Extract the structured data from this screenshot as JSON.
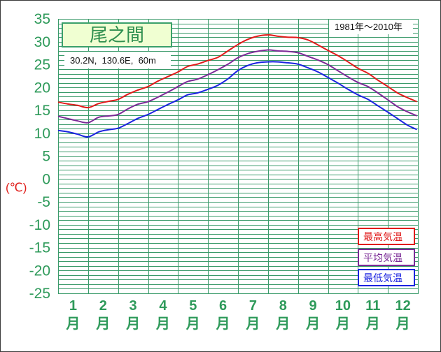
{
  "title": "尾之間",
  "location": "30.2N,  130.6E,  60m",
  "period": "1981年〜2010年",
  "colors": {
    "grid": "#3a9a6a",
    "axis_text": "#2e9a5a",
    "unit_text": "#e0201c",
    "title_bg": "#f0ffd2",
    "title_border": "#3aa06a",
    "frame": "#3a3a3a"
  },
  "chart_data": {
    "type": "line",
    "title": "尾之間",
    "ylabel": "(℃)",
    "xlabel": "",
    "ylim": [
      -25,
      35
    ],
    "y_ticks": [
      35,
      30,
      25,
      20,
      15,
      10,
      5,
      0,
      -5,
      -10,
      -15,
      -20,
      -25
    ],
    "x_tick_labels": [
      "1",
      "2",
      "3",
      "4",
      "5",
      "6",
      "7",
      "8",
      "9",
      "10",
      "11",
      "12"
    ],
    "x_tick_unit": "月",
    "grid": true,
    "legend_position": "bottom-right",
    "x": [
      "1/1",
      "1/11",
      "1/21",
      "2/1",
      "2/11",
      "2/21",
      "3/1",
      "3/11",
      "3/21",
      "4/1",
      "4/11",
      "4/21",
      "5/1",
      "5/11",
      "5/21",
      "6/1",
      "6/11",
      "6/21",
      "7/1",
      "7/11",
      "7/21",
      "8/1",
      "8/11",
      "8/21",
      "9/1",
      "9/11",
      "9/21",
      "10/1",
      "10/11",
      "10/21",
      "11/1",
      "11/11",
      "11/21",
      "12/1",
      "12/11",
      "12/21",
      "12/31"
    ],
    "series": [
      {
        "name": "最高気温",
        "color": "#e01a1a",
        "values": [
          16.8,
          16.4,
          16.1,
          15.6,
          16.5,
          17.0,
          17.4,
          18.5,
          19.4,
          20.2,
          21.4,
          22.4,
          23.4,
          24.6,
          25.1,
          25.9,
          26.6,
          28.0,
          29.4,
          30.5,
          31.2,
          31.5,
          31.2,
          31.0,
          30.9,
          30.4,
          29.3,
          28.1,
          27.0,
          25.7,
          24.2,
          23.1,
          21.6,
          20.2,
          18.8,
          17.8,
          16.9
        ]
      },
      {
        "name": "平均気温",
        "color": "#7a2a96",
        "values": [
          13.7,
          13.2,
          12.7,
          12.3,
          13.5,
          13.8,
          14.1,
          15.3,
          16.3,
          16.9,
          17.9,
          19.0,
          20.2,
          21.3,
          21.8,
          22.8,
          23.9,
          25.1,
          26.5,
          27.4,
          27.9,
          28.2,
          28.0,
          27.9,
          27.6,
          26.8,
          26.0,
          25.0,
          23.7,
          22.4,
          21.1,
          20.2,
          18.8,
          17.3,
          15.8,
          14.7,
          13.8
        ]
      },
      {
        "name": "最低気温",
        "color": "#1a22e0",
        "values": [
          10.6,
          10.3,
          9.8,
          9.2,
          10.3,
          10.8,
          11.1,
          12.1,
          13.2,
          14.1,
          15.2,
          16.3,
          17.3,
          18.4,
          18.8,
          19.6,
          20.5,
          21.9,
          23.7,
          24.8,
          25.4,
          25.6,
          25.6,
          25.4,
          25.1,
          24.3,
          23.4,
          22.2,
          21.0,
          19.7,
          18.4,
          17.4,
          16.0,
          14.6,
          13.2,
          11.8,
          10.8
        ]
      }
    ]
  }
}
